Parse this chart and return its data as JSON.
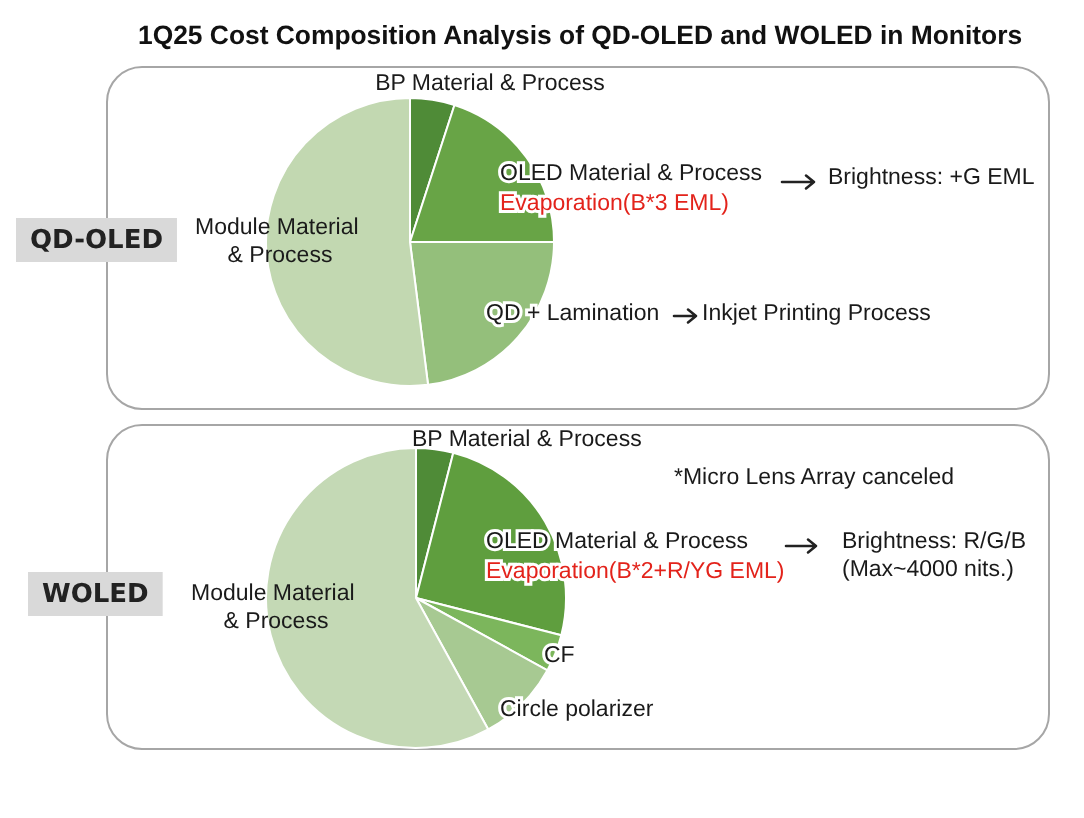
{
  "chart_data": [
    {
      "type": "pie",
      "title": "1Q25 Cost Composition Analysis of QD-OLED and WOLED in Monitors",
      "subtitle": "QD-OLED",
      "categories": [
        "BP Material & Process",
        "OLED Material & Process",
        "QD + Lamination",
        "Module Material & Process"
      ],
      "values": [
        5,
        20,
        23,
        52
      ],
      "colors": [
        "#4f8b37",
        "#68a446",
        "#94bf7b",
        "#c2d8b1"
      ],
      "annotations": [
        "Evaporation(B*3 EML)",
        "Brightness: +G EML",
        "Inkjet Printing Process"
      ]
    },
    {
      "type": "pie",
      "subtitle": "WOLED",
      "categories": [
        "BP Material & Process",
        "OLED Material & Process",
        "CF",
        "Circle polarizer",
        "Module Material & Process"
      ],
      "values": [
        4,
        25,
        4,
        9,
        58
      ],
      "colors": [
        "#4f8b37",
        "#5f9e3e",
        "#7cb65c",
        "#a7c992",
        "#c4d9b5"
      ],
      "annotations": [
        "Evaporation(B*2+R/YG EML)",
        "*Micro Lens Array canceled",
        "Brightness: R/G/B",
        "(Max~4000 nits.)"
      ]
    }
  ]
}
